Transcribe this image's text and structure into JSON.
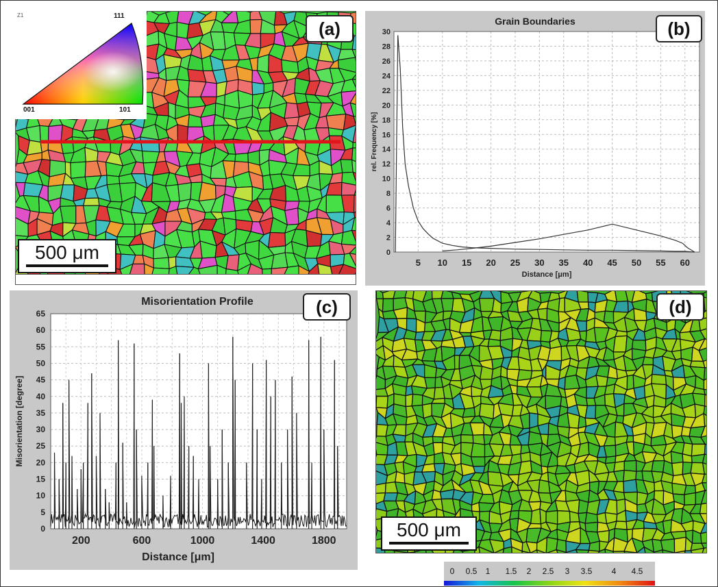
{
  "figure": {
    "panels": {
      "a": {
        "label": "(a)",
        "scale_bar": "500 μm",
        "ipf_legend": {
          "axis": "Z1",
          "corner_top": "111",
          "corner_left": "001",
          "corner_right": "101"
        },
        "line_color": "#e0141a"
      },
      "b": {
        "label": "(b)"
      },
      "c": {
        "label": "(c)"
      },
      "d": {
        "label": "(d)",
        "scale_bar": "500 μm"
      }
    },
    "colorbar_ticks": [
      "0",
      "0.5",
      "1",
      "1.5",
      "2",
      "2.5",
      "3",
      "3.5",
      "4",
      "4.5"
    ]
  },
  "chart_data": [
    {
      "type": "line",
      "title": "Grain Boundaries",
      "xlabel": "Distance [μm]",
      "ylabel": "rel. Frequency [%]",
      "xlim": [
        0,
        63
      ],
      "ylim": [
        0,
        30
      ],
      "xticks": [
        5,
        10,
        15,
        20,
        25,
        30,
        35,
        40,
        45,
        50,
        55,
        60
      ],
      "yticks": [
        0,
        2,
        4,
        6,
        8,
        10,
        12,
        14,
        16,
        18,
        20,
        22,
        24,
        26,
        28,
        30
      ],
      "grid": true,
      "series": [
        {
          "x": [
            0.3,
            0.8,
            1.3,
            1.8,
            2.3,
            3,
            4,
            5,
            6,
            7,
            8,
            10,
            12,
            14,
            16,
            18,
            20,
            25,
            30,
            35,
            40,
            45,
            50,
            55,
            58,
            60,
            61,
            62
          ],
          "y": [
            0,
            29.5,
            25,
            17,
            12,
            9,
            6,
            4.2,
            3.2,
            2.5,
            1.9,
            1.2,
            0.9,
            0.7,
            0.6,
            0.55,
            0.5,
            0.4,
            0.35,
            0.3,
            0.25,
            0.25,
            0.2,
            0.15,
            0.1,
            0.1,
            0.05,
            0
          ]
        },
        {
          "x": [
            10,
            13,
            16,
            20,
            25,
            30,
            35,
            40,
            45,
            50,
            55,
            58,
            59.5,
            60.5,
            61.5,
            62
          ],
          "y": [
            0.15,
            0.3,
            0.5,
            0.8,
            1.3,
            1.8,
            2.4,
            3.0,
            3.8,
            3.0,
            2.2,
            1.6,
            1.2,
            0.6,
            0.2,
            0
          ]
        }
      ]
    },
    {
      "type": "line",
      "title": "Misorientation Profile",
      "xlabel": "Distance [μm]",
      "ylabel": "Misorientation [degree]",
      "xlim": [
        0,
        1950
      ],
      "ylim": [
        0,
        65
      ],
      "xticks": [
        200,
        600,
        1000,
        1400,
        1800
      ],
      "yticks": [
        0,
        5,
        10,
        15,
        20,
        25,
        30,
        35,
        40,
        45,
        50,
        55,
        60,
        65
      ],
      "grid": true,
      "peaks": {
        "x": [
          25,
          55,
          80,
          100,
          120,
          140,
          175,
          200,
          215,
          245,
          270,
          300,
          325,
          360,
          385,
          430,
          445,
          475,
          500,
          550,
          565,
          600,
          640,
          670,
          680,
          740,
          790,
          850,
          860,
          880,
          910,
          940,
          975,
          1040,
          1050,
          1100,
          1130,
          1170,
          1200,
          1215,
          1290,
          1330,
          1360,
          1390,
          1420,
          1450,
          1480,
          1520,
          1560,
          1590,
          1620,
          1700,
          1720,
          1780,
          1800,
          1870,
          1890
        ],
        "y": [
          23,
          15,
          38,
          20,
          45,
          22,
          12,
          18,
          20,
          38,
          47,
          22,
          35,
          12,
          8,
          20,
          57,
          26,
          8,
          56,
          30,
          16,
          20,
          39,
          25,
          10,
          16,
          53,
          38,
          40,
          25,
          22,
          15,
          50,
          25,
          15,
          30,
          20,
          58,
          45,
          20,
          50,
          30,
          15,
          51,
          40,
          45,
          20,
          30,
          46,
          35,
          57,
          20,
          58,
          30,
          51,
          25
        ]
      }
    }
  ]
}
